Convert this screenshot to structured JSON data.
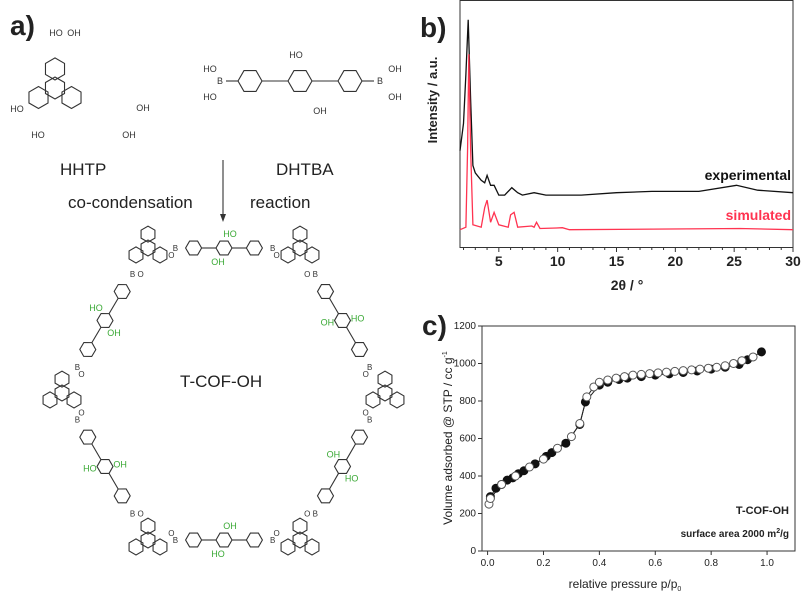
{
  "panel_a": {
    "label": "a)",
    "hhtp": {
      "name": "HHTP",
      "groups": [
        "HO",
        "OH",
        "HO",
        "OH",
        "HO",
        "OH"
      ]
    },
    "dhtba": {
      "name": "DHTBA",
      "groups": [
        "HO",
        "B",
        "HO",
        "HO",
        "OH",
        "B",
        "OH",
        "OH"
      ]
    },
    "reaction_left": "co-condensation",
    "reaction_right": "reaction",
    "product": "T-COF-OH",
    "atom_labels": {
      "oh": "OH",
      "ho": "HO",
      "b": "B",
      "o": "O"
    },
    "colors": {
      "bonds": "#333333",
      "hydroxyl": "#3aa935"
    }
  },
  "chart_data": [
    {
      "panel_label": "b)",
      "type": "line",
      "xlabel": "2θ / °",
      "ylabel": "Intensity / a.u.",
      "xlim": [
        1.7,
        30
      ],
      "ylim": [
        0,
        100
      ],
      "xticks": [
        5,
        10,
        15,
        20,
        25,
        30
      ],
      "yticks": [],
      "grid": false,
      "series": [
        {
          "name": "experimental",
          "color": "#111111",
          "x": [
            1.7,
            2.0,
            2.2,
            2.4,
            2.6,
            2.8,
            3.0,
            3.5,
            3.8,
            4.0,
            4.3,
            4.6,
            5.0,
            5.5,
            6.1,
            6.6,
            7.0,
            8.0,
            9,
            10,
            12,
            15,
            18,
            22,
            25.2,
            27,
            30
          ],
          "y": [
            39,
            50,
            70,
            92,
            60,
            33,
            30,
            27,
            26,
            29,
            25,
            25,
            21,
            21,
            24,
            22,
            21,
            22,
            21,
            21,
            21,
            22,
            22.5,
            22.5,
            25,
            23,
            22
          ]
        },
        {
          "name": "simulated",
          "color": "#ff3350",
          "x": [
            1.7,
            2.2,
            2.35,
            2.45,
            2.6,
            2.8,
            3.5,
            3.8,
            4.0,
            4.3,
            4.6,
            5.0,
            5.8,
            6.0,
            6.3,
            6.6,
            7.8,
            8.0,
            8.2,
            8.5,
            9.9,
            10.4,
            11,
            25.5,
            30
          ],
          "y": [
            7,
            8,
            40,
            78,
            40,
            9,
            8,
            16,
            19,
            10,
            14,
            9,
            8,
            13,
            14,
            8,
            8.5,
            8,
            10,
            7.5,
            7.7,
            7.8,
            7,
            7.5,
            7
          ]
        }
      ]
    },
    {
      "panel_label": "c)",
      "type": "scatter",
      "xlabel": "relative pressure p/p",
      "xlabel_subscript": "0",
      "ylabel": "Volume adsorbed @ STP / cc g",
      "ylabel_superscript": "-1",
      "xlim": [
        -0.02,
        1.1
      ],
      "ylim": [
        0,
        1200
      ],
      "xticks": [
        "0.0",
        "0.2",
        "0.4",
        "0.6",
        "0.8",
        "1.0"
      ],
      "yticks": [
        "0",
        "200",
        "400",
        "600",
        "800",
        "1000",
        "1200"
      ],
      "grid": false,
      "annotations": [
        "T-COF-OH",
        "surface area 2000 m",
        "2",
        "/g"
      ],
      "series": [
        {
          "marker": "filled-circle",
          "color": "#111111",
          "x": [
            0.01,
            0.03,
            0.05,
            0.07,
            0.09,
            0.11,
            0.13,
            0.17,
            0.21,
            0.23,
            0.28,
            0.33,
            0.35,
            0.4,
            0.43,
            0.47,
            0.5,
            0.55,
            0.6,
            0.65,
            0.7,
            0.75,
            0.8,
            0.85,
            0.9,
            0.93,
            0.98
          ],
          "y": [
            290,
            335,
            355,
            378,
            390,
            412,
            428,
            465,
            505,
            525,
            575,
            675,
            795,
            885,
            900,
            915,
            922,
            930,
            938,
            945,
            952,
            960,
            970,
            980,
            995,
            1020,
            1062
          ]
        },
        {
          "marker": "open-circle",
          "color": "#555555",
          "x": [
            0.005,
            0.01,
            0.05,
            0.1,
            0.15,
            0.2,
            0.25,
            0.3,
            0.33,
            0.355,
            0.38,
            0.4,
            0.43,
            0.46,
            0.49,
            0.52,
            0.55,
            0.58,
            0.61,
            0.64,
            0.67,
            0.7,
            0.73,
            0.76,
            0.79,
            0.82,
            0.85,
            0.88,
            0.91,
            0.95
          ],
          "y": [
            250,
            280,
            355,
            400,
            448,
            490,
            548,
            610,
            680,
            822,
            875,
            900,
            912,
            922,
            930,
            938,
            942,
            946,
            950,
            954,
            958,
            962,
            966,
            970,
            975,
            980,
            988,
            1000,
            1015,
            1035
          ]
        }
      ]
    }
  ]
}
